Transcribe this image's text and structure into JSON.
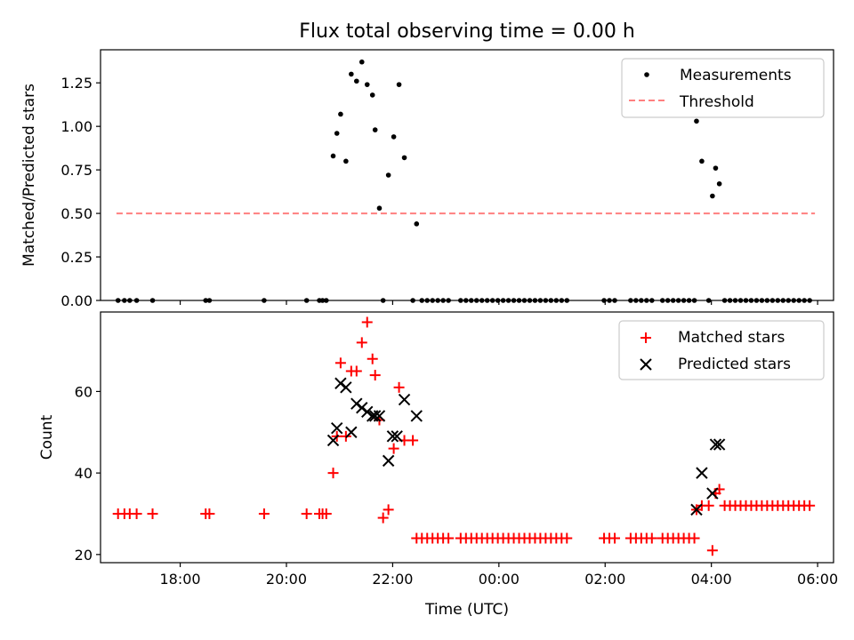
{
  "chart_data": [
    {
      "type": "scatter",
      "title": "Flux total observing time = 0.00 h",
      "xlabel": "",
      "ylabel": "Matched/Predicted stars",
      "xlim": [
        -7.5,
        6.3
      ],
      "ylim": [
        0,
        1.44
      ],
      "yticks": [
        0.0,
        0.25,
        0.5,
        0.75,
        1.0,
        1.25
      ],
      "ytick_labels": [
        "0.00",
        "0.25",
        "0.50",
        "0.75",
        "1.00",
        "1.25"
      ],
      "legend_location": "top-right",
      "series": [
        {
          "name": "Measurements",
          "marker": "dot",
          "color": "#000000",
          "x": [
            -7.17,
            -7.05,
            -6.95,
            -6.82,
            -6.52,
            -5.52,
            -5.45,
            -4.42,
            -3.62,
            -3.38,
            -3.32,
            -3.25,
            -3.12,
            -3.05,
            -2.98,
            -2.88,
            -2.78,
            -2.68,
            -2.58,
            -2.48,
            -2.38,
            -2.33,
            -2.25,
            -2.18,
            -2.08,
            -1.98,
            -1.88,
            -1.78,
            -1.62,
            -1.55,
            -1.45,
            -1.35,
            -1.25,
            -1.15,
            -1.05,
            -0.95,
            -0.72,
            -0.62,
            -0.52,
            -0.42,
            -0.32,
            -0.22,
            -0.12,
            -0.02,
            0.08,
            0.18,
            0.28,
            0.38,
            0.48,
            0.58,
            0.68,
            0.78,
            0.88,
            0.98,
            1.08,
            1.18,
            1.28,
            1.98,
            2.08,
            2.18,
            2.48,
            2.58,
            2.68,
            2.78,
            2.88,
            3.08,
            3.18,
            3.28,
            3.38,
            3.48,
            3.58,
            3.68,
            3.72,
            3.82,
            3.95,
            4.02,
            4.08,
            4.15,
            4.25,
            4.35,
            4.45,
            4.55,
            4.65,
            4.75,
            4.85,
            4.95,
            5.05,
            5.15,
            5.25,
            5.35,
            5.45,
            5.55,
            5.65,
            5.75,
            5.85
          ],
          "y": [
            0,
            0,
            0,
            0,
            0,
            0,
            0,
            0,
            0,
            0,
            0,
            0,
            0.83,
            0.96,
            1.07,
            0.8,
            1.3,
            1.26,
            1.37,
            1.24,
            1.18,
            0.98,
            0.53,
            0,
            0.72,
            0.94,
            1.24,
            0.82,
            0,
            0.44,
            0,
            0,
            0,
            0,
            0,
            0,
            0,
            0,
            0,
            0,
            0,
            0,
            0,
            0,
            0,
            0,
            0,
            0,
            0,
            0,
            0,
            0,
            0,
            0,
            0,
            0,
            0,
            0,
            0,
            0,
            0,
            0,
            0,
            0,
            0,
            0,
            0,
            0,
            0,
            0,
            0,
            0,
            1.03,
            0.8,
            0,
            0.6,
            0.76,
            0.67,
            0,
            0,
            0,
            0,
            0,
            0,
            0,
            0,
            0,
            0,
            0,
            0,
            0,
            0,
            0,
            0,
            0
          ]
        },
        {
          "name": "Threshold",
          "marker": "dashed-line",
          "color": "#ff7f7f",
          "x": [
            -7.2,
            5.95
          ],
          "y": [
            0.5,
            0.5
          ]
        }
      ]
    },
    {
      "type": "scatter",
      "title": "",
      "xlabel": "Time (UTC)",
      "ylabel": "Count",
      "xlim": [
        -7.5,
        6.3
      ],
      "ylim": [
        18,
        79.5
      ],
      "yticks": [
        20,
        40,
        60
      ],
      "ytick_labels": [
        "20",
        "40",
        "60"
      ],
      "xticks": [
        -6,
        -4,
        -2,
        0,
        2,
        4,
        6
      ],
      "xtick_labels": [
        "18:00",
        "20:00",
        "22:00",
        "00:00",
        "02:00",
        "04:00",
        "06:00"
      ],
      "legend_location": "top-right",
      "series": [
        {
          "name": "Matched stars",
          "marker": "plus",
          "color": "#ff0000",
          "x": [
            -7.17,
            -7.05,
            -6.95,
            -6.82,
            -6.52,
            -5.52,
            -5.45,
            -4.42,
            -3.62,
            -3.38,
            -3.32,
            -3.25,
            -3.12,
            -3.05,
            -2.98,
            -2.88,
            -2.78,
            -2.68,
            -2.58,
            -2.48,
            -2.38,
            -2.33,
            -2.25,
            -2.18,
            -2.08,
            -1.98,
            -1.88,
            -1.78,
            -1.62,
            -1.55,
            -1.45,
            -1.35,
            -1.25,
            -1.15,
            -1.05,
            -0.95,
            -0.72,
            -0.62,
            -0.52,
            -0.42,
            -0.32,
            -0.22,
            -0.12,
            -0.02,
            0.08,
            0.18,
            0.28,
            0.38,
            0.48,
            0.58,
            0.68,
            0.78,
            0.88,
            0.98,
            1.08,
            1.18,
            1.28,
            1.98,
            2.08,
            2.18,
            2.48,
            2.58,
            2.68,
            2.78,
            2.88,
            3.08,
            3.18,
            3.28,
            3.38,
            3.48,
            3.58,
            3.68,
            3.72,
            3.82,
            3.95,
            4.02,
            4.08,
            4.15,
            4.25,
            4.35,
            4.45,
            4.55,
            4.65,
            4.75,
            4.85,
            4.95,
            5.05,
            5.15,
            5.25,
            5.35,
            5.45,
            5.55,
            5.65,
            5.75,
            5.85
          ],
          "y": [
            30,
            30,
            30,
            30,
            30,
            30,
            30,
            30,
            30,
            30,
            30,
            30,
            40,
            49,
            67,
            49,
            65,
            65,
            72,
            77,
            68,
            64,
            53,
            29,
            31,
            46,
            61,
            48,
            48,
            24,
            24,
            24,
            24,
            24,
            24,
            24,
            24,
            24,
            24,
            24,
            24,
            24,
            24,
            24,
            24,
            24,
            24,
            24,
            24,
            24,
            24,
            24,
            24,
            24,
            24,
            24,
            24,
            24,
            24,
            24,
            24,
            24,
            24,
            24,
            24,
            24,
            24,
            24,
            24,
            24,
            24,
            24,
            31,
            32,
            32,
            21,
            35,
            36,
            32,
            32,
            32,
            32,
            32,
            32,
            32,
            32,
            32,
            32,
            32,
            32,
            32,
            32,
            32,
            32,
            32
          ]
        },
        {
          "name": "Predicted stars",
          "marker": "cross",
          "color": "#000000",
          "x": [
            -3.12,
            -3.05,
            -2.98,
            -2.88,
            -2.78,
            -2.68,
            -2.58,
            -2.48,
            -2.38,
            -2.33,
            -2.25,
            -2.08,
            -2.0,
            -1.92,
            -1.78,
            -1.55,
            3.72,
            3.82,
            4.02,
            4.08,
            4.15
          ],
          "y": [
            48,
            51,
            62,
            61,
            50,
            57,
            56,
            55,
            54,
            54,
            54,
            43,
            49,
            49,
            58,
            54,
            31,
            40,
            35,
            47,
            47
          ]
        }
      ]
    }
  ]
}
